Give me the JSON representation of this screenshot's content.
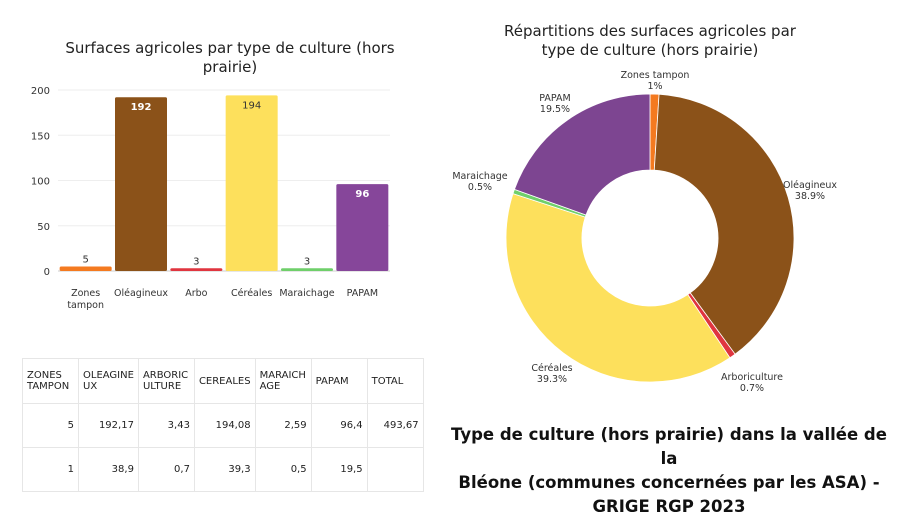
{
  "chart_data": [
    {
      "type": "bar",
      "title": "Surfaces agricoles par type de culture (hors prairie)",
      "categories": [
        "Zones tampon",
        "Oléagineux",
        "Arbo",
        "Céréales",
        "Maraichage",
        "PAPAM"
      ],
      "values": [
        5,
        192,
        3,
        194,
        3,
        96
      ],
      "colors": [
        "#f47a20",
        "#8b5219",
        "#e0353f",
        "#fde05c",
        "#6fcf6a",
        "#86469a"
      ],
      "ylim": [
        0,
        200
      ],
      "yticks": [
        "0",
        "50",
        "100",
        "150",
        "200"
      ],
      "grid": true,
      "legend": "none"
    },
    {
      "type": "pie",
      "title": "Répartitions des surfaces agricoles par type de culture (hors prairie)",
      "donut": true,
      "slices": [
        {
          "label": "Zones tampon",
          "value": 1,
          "pct": "1%",
          "color": "#f47a20"
        },
        {
          "label": "Oléagineux",
          "value": 38.9,
          "pct": "38.9%",
          "color": "#8b5219"
        },
        {
          "label": "Arboriculture",
          "value": 0.7,
          "pct": "0.7%",
          "color": "#e0353f"
        },
        {
          "label": "Céréales",
          "value": 39.3,
          "pct": "39.3%",
          "color": "#fde05c"
        },
        {
          "label": "Maraichage",
          "value": 0.5,
          "pct": "0.5%",
          "color": "#6fcf6a"
        },
        {
          "label": "PAPAM",
          "value": 19.5,
          "pct": "19.5%",
          "color": "#7d4591"
        }
      ]
    }
  ],
  "table": {
    "headers": [
      [
        "ZONES",
        "TAMPON"
      ],
      [
        "OLEAGINE",
        "UX"
      ],
      [
        "ARBORIC",
        "ULTURE"
      ],
      [
        "CEREALES"
      ],
      [
        "MARAICH",
        "AGE"
      ],
      [
        "PAPAM"
      ],
      [
        "TOTAL"
      ]
    ],
    "rows": [
      [
        "5",
        "192,17",
        "3,43",
        "194,08",
        "2,59",
        "96,4",
        "493,67"
      ],
      [
        "1",
        "38,9",
        "0,7",
        "39,3",
        "0,5",
        "19,5",
        ""
      ]
    ]
  },
  "caption": "Type de culture (hors prairie) dans la vallée de la Bléone (communes concernées par les ASA) - GRIGE RGP 2023",
  "caption_lines": [
    "Type de culture (hors prairie) dans la vallée de la",
    "Bléone (communes concernées par les ASA) -",
    "GRIGE RGP 2023"
  ],
  "text": {
    "bar_title_lines": [
      "Surfaces agricoles par type de culture (hors",
      "prairie)"
    ],
    "pie_title_lines": [
      "Répartitions des surfaces agricoles par",
      "type de culture (hors prairie)"
    ],
    "bar_cat_lines": [
      [
        "Zones",
        "tampon"
      ],
      [
        "Oléagineux"
      ],
      [
        "Arbo"
      ],
      [
        "Céréales"
      ],
      [
        "Maraichage"
      ],
      [
        "PAPAM"
      ]
    ],
    "pie_label_lines": [
      [
        "Zones tampon",
        "1%"
      ],
      [
        "Oléagineux",
        "38.9%"
      ],
      [
        "Arboriculture",
        "0.7%"
      ],
      [
        "Céréales",
        "39.3%"
      ],
      [
        "Maraichage",
        "0.5%"
      ],
      [
        "PAPAM",
        "19.5%"
      ]
    ]
  }
}
